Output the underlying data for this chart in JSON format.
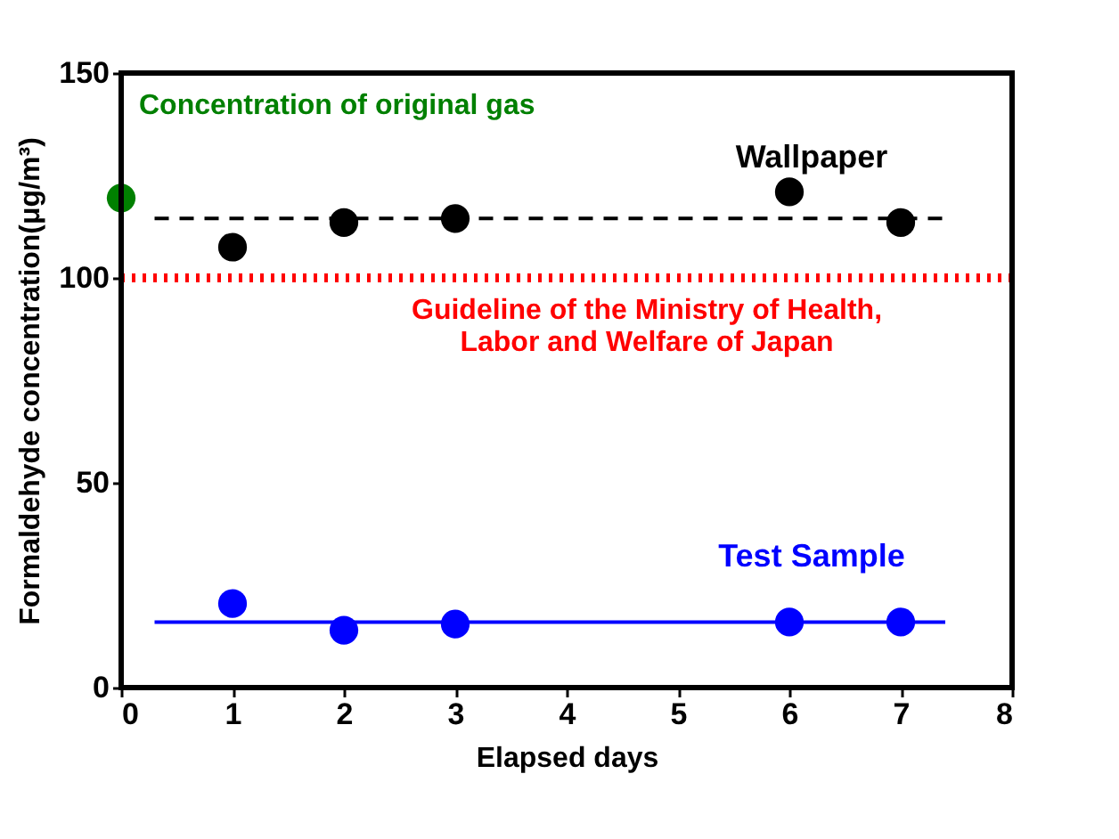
{
  "chart_data": {
    "type": "scatter",
    "xlabel": "Elapsed days",
    "ylabel": "Formaldehyde concentration(μg/m³)",
    "xlim": [
      0,
      8
    ],
    "xticks": [
      0,
      1,
      2,
      3,
      4,
      5,
      6,
      7,
      8
    ],
    "ylim": [
      0,
      150
    ],
    "yticks": [
      0,
      50,
      100,
      150
    ],
    "series": [
      {
        "name": "Wallpaper",
        "color": "#000000",
        "marker": "circle",
        "x": [
          1,
          2,
          3,
          6,
          7
        ],
        "values": [
          107.5,
          113.5,
          114.5,
          121,
          113.5
        ]
      },
      {
        "type": "line",
        "color": "#000000",
        "marker": "none",
        "line_style": "dashed",
        "x": [
          0.3,
          7.4
        ],
        "values": [
          114.5,
          114.5
        ]
      },
      {
        "color": "#008000",
        "marker": "circle",
        "x": [
          0
        ],
        "values": [
          119.5
        ]
      },
      {
        "name": "Test Sample",
        "color": "#0000ff",
        "marker": "circle",
        "x": [
          1,
          2,
          3,
          6,
          7
        ],
        "values": [
          20.5,
          14,
          15.5,
          16,
          16
        ]
      },
      {
        "type": "line",
        "color": "#0000ff",
        "marker": "none",
        "line_style": "solid",
        "x": [
          0.3,
          7.4
        ],
        "values": [
          16,
          16
        ]
      }
    ],
    "ref_lines": [
      {
        "axis": "y",
        "value": 100,
        "label": "Guideline of  the Ministry of Health,\nLabor and Welfare of Japan",
        "color": "#ff0000",
        "line_style": "dotted"
      }
    ],
    "annotations": [
      {
        "text": "Concentration of original gas",
        "x": 0,
        "y": 119.5
      }
    ]
  }
}
